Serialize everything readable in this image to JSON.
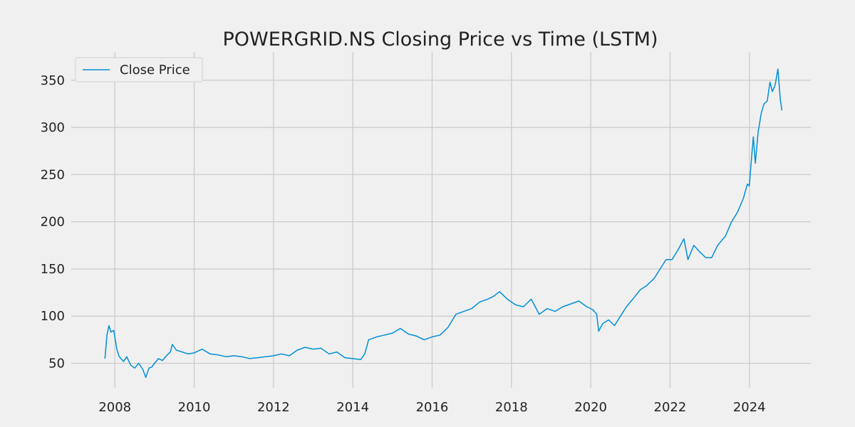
{
  "chart_data": {
    "type": "line",
    "title": "POWERGRID.NS Closing Price vs Time (LSTM)",
    "xlabel": "",
    "ylabel": "",
    "xlim": [
      2006.9,
      2025.55
    ],
    "ylim": [
      24,
      380
    ],
    "x_ticks": [
      2008,
      2010,
      2012,
      2014,
      2016,
      2018,
      2020,
      2022,
      2024
    ],
    "x_tick_labels": [
      "2008",
      "2010",
      "2012",
      "2014",
      "2016",
      "2018",
      "2020",
      "2022",
      "2024"
    ],
    "y_ticks": [
      50,
      100,
      150,
      200,
      250,
      300,
      350
    ],
    "y_tick_labels": [
      "50",
      "100",
      "150",
      "200",
      "250",
      "300",
      "350"
    ],
    "grid": true,
    "legend_position": "top-left",
    "series": [
      {
        "name": "Close Price",
        "color": "#008fd5",
        "x": [
          2007.75,
          2007.8,
          2007.85,
          2007.9,
          2007.97,
          2008.05,
          2008.1,
          2008.15,
          2008.22,
          2008.3,
          2008.4,
          2008.5,
          2008.6,
          2008.7,
          2008.78,
          2008.86,
          2008.93,
          2009.0,
          2009.1,
          2009.2,
          2009.3,
          2009.4,
          2009.45,
          2009.55,
          2009.7,
          2009.85,
          2010.0,
          2010.2,
          2010.4,
          2010.6,
          2010.8,
          2011.0,
          2011.2,
          2011.4,
          2011.6,
          2011.8,
          2012.0,
          2012.2,
          2012.4,
          2012.6,
          2012.8,
          2013.0,
          2013.2,
          2013.4,
          2013.6,
          2013.8,
          2014.0,
          2014.2,
          2014.3,
          2014.4,
          2014.6,
          2014.8,
          2015.0,
          2015.2,
          2015.4,
          2015.6,
          2015.8,
          2016.0,
          2016.2,
          2016.4,
          2016.6,
          2016.8,
          2017.0,
          2017.2,
          2017.4,
          2017.55,
          2017.7,
          2017.9,
          2018.1,
          2018.3,
          2018.5,
          2018.7,
          2018.9,
          2019.1,
          2019.3,
          2019.5,
          2019.7,
          2019.9,
          2020.05,
          2020.15,
          2020.2,
          2020.3,
          2020.45,
          2020.6,
          2020.75,
          2020.9,
          2021.1,
          2021.25,
          2021.4,
          2021.6,
          2021.75,
          2021.9,
          2022.05,
          2022.2,
          2022.35,
          2022.45,
          2022.6,
          2022.75,
          2022.9,
          2023.05,
          2023.2,
          2023.4,
          2023.55,
          2023.7,
          2023.85,
          2023.95,
          2024.0,
          2024.05,
          2024.1,
          2024.15,
          2024.22,
          2024.3,
          2024.37,
          2024.45,
          2024.52,
          2024.58,
          2024.65,
          2024.72,
          2024.78,
          2024.82
        ],
        "values": [
          55,
          80,
          90,
          83,
          85,
          65,
          58,
          55,
          52,
          57,
          48,
          45,
          50,
          44,
          35,
          45,
          46,
          50,
          55,
          53,
          58,
          62,
          70,
          64,
          62,
          60,
          61,
          65,
          60,
          59,
          57,
          58,
          57,
          55,
          56,
          57,
          58,
          60,
          58,
          64,
          67,
          65,
          66,
          60,
          62,
          56,
          55,
          54,
          60,
          75,
          78,
          80,
          82,
          87,
          81,
          79,
          75,
          78,
          80,
          88,
          102,
          105,
          108,
          115,
          118,
          121,
          126,
          118,
          112,
          110,
          118,
          102,
          108,
          105,
          110,
          113,
          116,
          110,
          107,
          102,
          84,
          92,
          96,
          90,
          100,
          110,
          120,
          128,
          132,
          140,
          150,
          160,
          160,
          170,
          182,
          160,
          175,
          168,
          162,
          162,
          175,
          185,
          200,
          210,
          225,
          240,
          238,
          265,
          290,
          262,
          295,
          315,
          325,
          328,
          348,
          338,
          345,
          362,
          330,
          318
        ]
      }
    ]
  }
}
